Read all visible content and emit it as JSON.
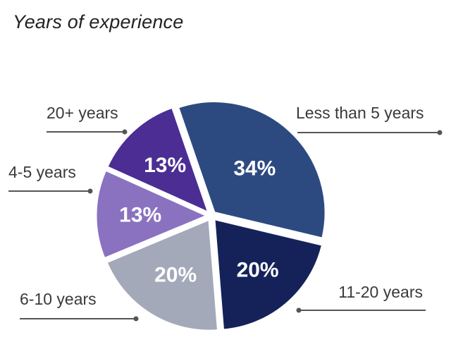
{
  "chart_data": {
    "type": "pie",
    "title": "Years of experience",
    "slices": [
      {
        "label": "Less than 5 years",
        "value": 34,
        "value_label": "34%",
        "color": "#2d4a80"
      },
      {
        "label": "11-20 years",
        "value": 20,
        "value_label": "20%",
        "color": "#15225a"
      },
      {
        "label": "6-10 years",
        "value": 20,
        "value_label": "20%",
        "color": "#a3a9b9"
      },
      {
        "label": "4-5 years",
        "value": 13,
        "value_label": "13%",
        "color": "#8a72c0"
      },
      {
        "label": "20+ years",
        "value": 13,
        "value_label": "13%",
        "color": "#4b2d94"
      }
    ],
    "legend": "callout-lines",
    "leader_color": "#555555"
  }
}
